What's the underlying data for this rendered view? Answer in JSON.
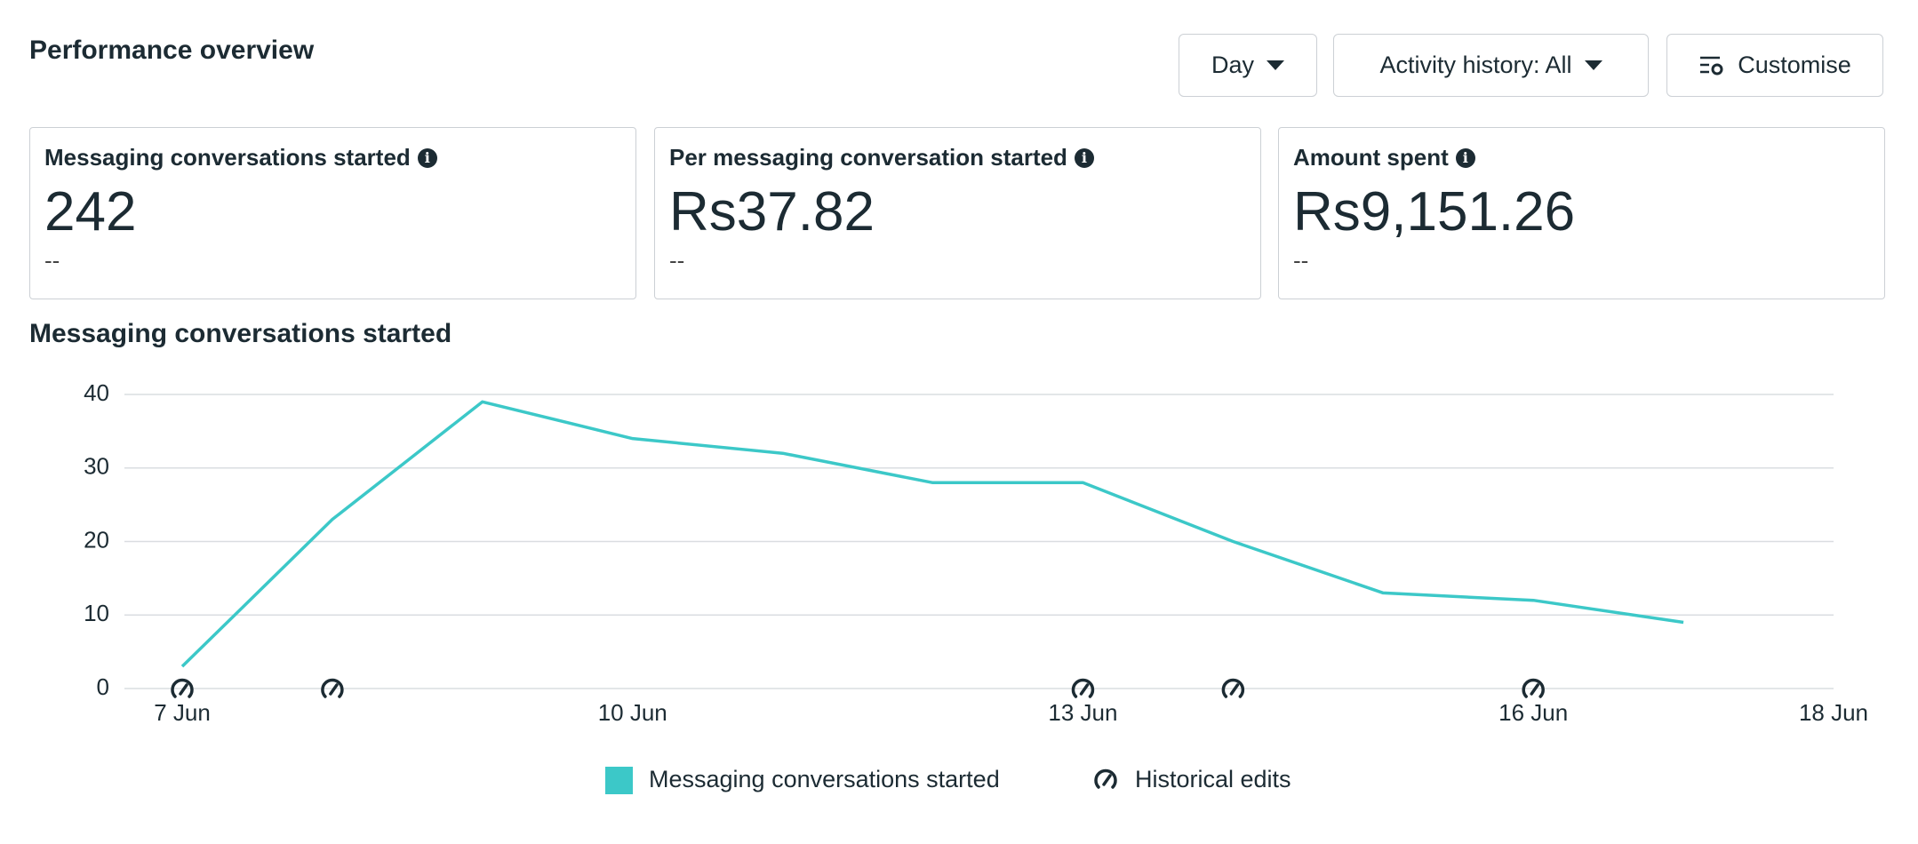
{
  "header": {
    "title": "Performance overview",
    "buttons": [
      "Day",
      "Activity history: All",
      "Customise"
    ]
  },
  "cards": [
    {
      "label": "Messaging conversations started",
      "value": "242",
      "change": "--"
    },
    {
      "label": "Per messaging conversation started",
      "value": "Rs37.82",
      "change": "--"
    },
    {
      "label": "Amount spent",
      "value": "Rs9,151.26",
      "change": "--"
    }
  ],
  "chart_data": {
    "type": "line",
    "title": "Messaging conversations started",
    "x": [
      7,
      8,
      9,
      10,
      11,
      12,
      13,
      14,
      15,
      16,
      17
    ],
    "series": [
      {
        "name": "Messaging conversations started",
        "color": "#3cc8c8",
        "values": [
          3,
          23,
          39,
          34,
          32,
          28,
          28,
          20,
          13,
          12,
          9
        ]
      }
    ],
    "edits": {
      "name": "Historical edits",
      "x": [
        7,
        8,
        13,
        14,
        16
      ]
    },
    "xlim": [
      7,
      18
    ],
    "xticks": [
      {
        "value": 7,
        "label": "7 Jun"
      },
      {
        "value": 10,
        "label": "10 Jun"
      },
      {
        "value": 13,
        "label": "13 Jun"
      },
      {
        "value": 16,
        "label": "16 Jun"
      },
      {
        "value": 18,
        "label": "18 Jun"
      }
    ],
    "ylim": [
      0,
      40
    ],
    "yticks": [
      0,
      10,
      20,
      30,
      40
    ],
    "grid": true
  }
}
